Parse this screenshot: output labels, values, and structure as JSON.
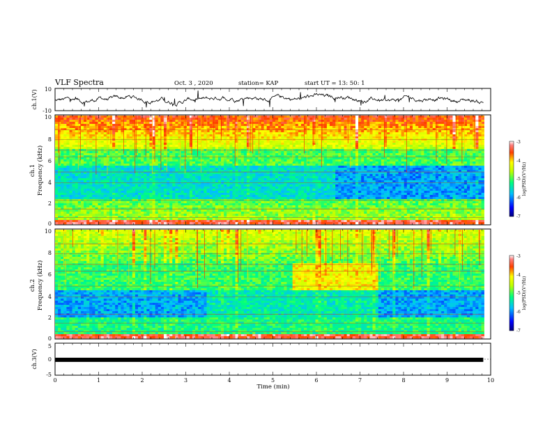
{
  "header": {
    "title": "VLF Spectra",
    "date": "Oct. 3  , 2020",
    "station": "station= KAP",
    "start": "start  UT  =   13: 50: 1"
  },
  "chart_data": [
    {
      "type": "line",
      "panel": "ch1-waveform",
      "ylabel": "ch.1(V)",
      "ylim": [
        -10,
        10
      ],
      "yticks": [
        "10",
        "-10"
      ],
      "xlim": [
        0,
        10
      ],
      "note_trace": "noisy waveform roughly between -6 and 6 V"
    },
    {
      "type": "heatmap",
      "panel": "ch1-spectrogram",
      "ylabel": "ch.1\nFrequency (kHz)",
      "ylim": [
        0,
        10
      ],
      "yticks": [
        "0",
        "2",
        "4",
        "6",
        "8",
        "10"
      ],
      "xlim": [
        0,
        9.85
      ],
      "colorbar": {
        "label": "log(PSD)(V²/Hz)",
        "range": [
          -7,
          -3
        ],
        "ticks": [
          "-3",
          "-4",
          "-5",
          "-6",
          "-7"
        ]
      }
    },
    {
      "type": "heatmap",
      "panel": "ch2-spectrogram",
      "ylabel": "ch.2\nFrequency (kHz)",
      "ylim": [
        0,
        10
      ],
      "yticks": [
        "0",
        "2",
        "4",
        "6",
        "8",
        "10"
      ],
      "xlim": [
        0,
        9.85
      ],
      "colorbar": {
        "label": "log(PSD)(V²/Hz)",
        "range": [
          -7,
          -3
        ],
        "ticks": [
          "-3",
          "-4",
          "-5",
          "-6",
          "-7"
        ]
      }
    },
    {
      "type": "line",
      "panel": "ch3-waveform",
      "ylabel": "ch.3(V)",
      "ylim": [
        -5,
        5
      ],
      "yticks": [
        "5",
        "0",
        "-5"
      ],
      "xlim": [
        0,
        10
      ],
      "xlabel": "Time  (min)",
      "xticks": [
        "0",
        "1",
        "2",
        "3",
        "4",
        "5",
        "6",
        "7",
        "8",
        "9",
        "10"
      ],
      "trace_level": -0.2
    }
  ],
  "colors": {
    "palette": [
      "#00007f",
      "#0000ff",
      "#007fff",
      "#00ffff",
      "#7fff7f",
      "#ffff00",
      "#ff7f00",
      "#ff0000",
      "#7f0000"
    ],
    "frame": "#000000"
  }
}
